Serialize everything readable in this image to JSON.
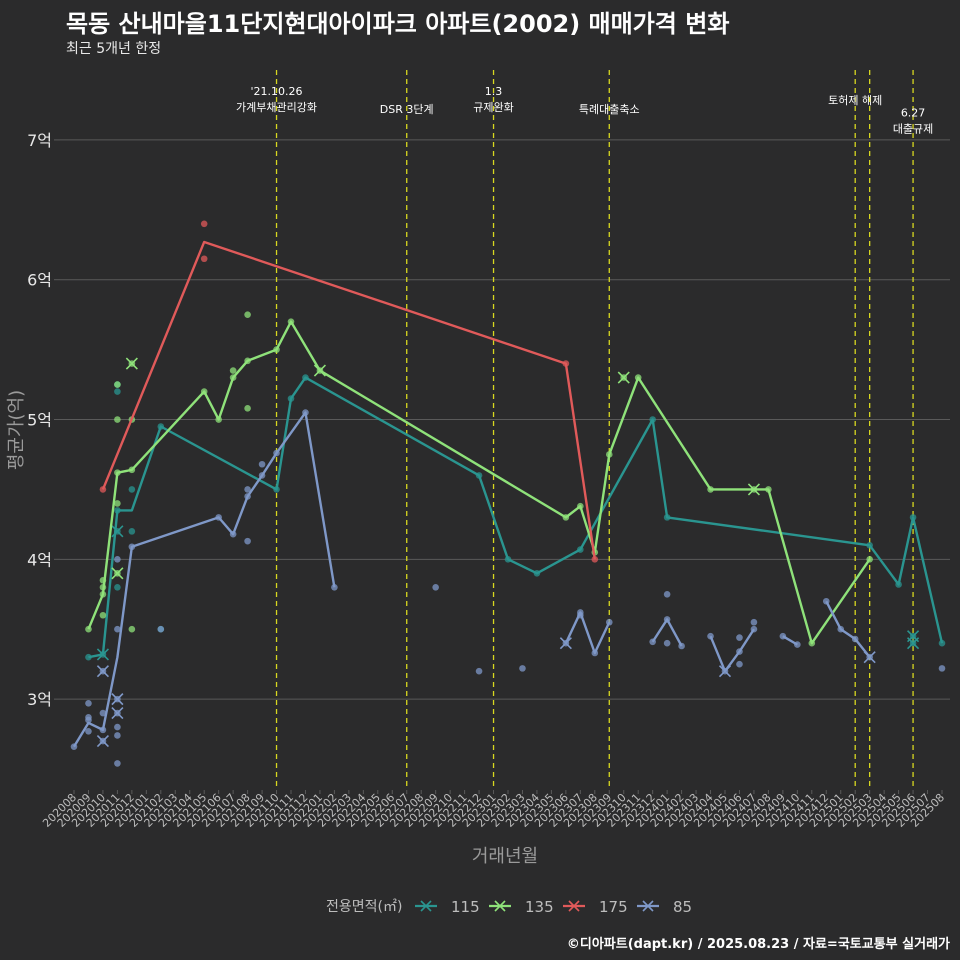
{
  "title": "목동 산내마을11단지현대아이파크 아파트(2002) 매매가격 변화",
  "subtitle": "최근 5개년 한정",
  "caption": "©디아파트(dapt.kr) / 2025.08.23 / 자료=국토교통부 실거래가",
  "colors": {
    "background": "#2b2b2c",
    "grid": "#5a5a5a",
    "event_line": "#d8d820",
    "axis_text": "#bdbdbd"
  },
  "chart_data": {
    "type": "line",
    "title": "목동 산내마을11단지현대아이파크 아파트(2002) 매매가격 변화",
    "xlabel": "거래년월",
    "ylabel": "평균가(억)",
    "ylim": [
      2.35,
      7.5
    ],
    "grid": true,
    "legend_title": "전용면적(㎡)",
    "legend_position": "bottom",
    "y_ticks": [
      {
        "v": 3,
        "label": "3억"
      },
      {
        "v": 4,
        "label": "4억"
      },
      {
        "v": 5,
        "label": "5억"
      },
      {
        "v": 6,
        "label": "6억"
      },
      {
        "v": 7,
        "label": "7억"
      }
    ],
    "categories": [
      "202008",
      "202009",
      "202010",
      "202011",
      "202012",
      "202101",
      "202102",
      "202103",
      "202104",
      "202105",
      "202106",
      "202107",
      "202108",
      "202109",
      "202110",
      "202111",
      "202112",
      "202201",
      "202202",
      "202203",
      "202204",
      "202205",
      "202206",
      "202207",
      "202208",
      "202209",
      "202210",
      "202211",
      "202212",
      "202301",
      "202302",
      "202303",
      "202304",
      "202305",
      "202306",
      "202307",
      "202308",
      "202309",
      "202310",
      "202311",
      "202312",
      "202401",
      "202402",
      "202403",
      "202404",
      "202405",
      "202406",
      "202407",
      "202408",
      "202409",
      "202410",
      "202411",
      "202412",
      "202501",
      "202502",
      "202503",
      "202504",
      "202505",
      "202506",
      "202507",
      "202508"
    ],
    "events": [
      {
        "x": 14,
        "label": "'21.10.26\n가계부채관리강화",
        "level": 0
      },
      {
        "x": 23,
        "label": "DSR 3단계",
        "level": 1
      },
      {
        "x": 29,
        "label": "1.3\n규제완화",
        "level": 0
      },
      {
        "x": 37,
        "label": "특례대출축소",
        "level": 1
      },
      {
        "x": 54,
        "label": "토허제 해제",
        "level": 0.5
      },
      {
        "x": 55,
        "label": "",
        "level": 0
      },
      {
        "x": 58,
        "label": "6.27\n대출규제",
        "level": 1.2
      }
    ],
    "series": [
      {
        "name": "115",
        "color": "#2a9590",
        "line": [
          [
            1,
            3.3
          ],
          [
            2,
            3.32
          ],
          [
            3,
            4.35
          ],
          [
            4,
            4.35
          ],
          [
            6,
            4.95
          ],
          [
            14,
            4.5
          ],
          [
            15,
            5.15
          ],
          [
            16,
            5.3
          ],
          [
            28,
            4.6
          ],
          [
            30,
            4.0
          ],
          [
            32,
            3.9
          ],
          [
            35,
            4.07
          ],
          [
            40,
            5.0
          ],
          [
            41,
            4.3
          ],
          [
            55,
            4.1
          ],
          [
            57,
            3.82
          ],
          [
            58,
            4.3
          ],
          [
            60,
            3.4
          ]
        ],
        "points": [
          [
            1,
            3.3
          ],
          [
            2,
            3.32
          ],
          [
            3,
            4.2
          ],
          [
            3,
            4.35
          ],
          [
            3,
            5.2
          ],
          [
            3,
            5.25
          ],
          [
            3,
            3.8
          ],
          [
            4,
            4.5
          ],
          [
            4,
            4.2
          ],
          [
            6,
            4.95
          ],
          [
            6,
            3.5
          ],
          [
            14,
            4.5
          ],
          [
            15,
            5.15
          ],
          [
            16,
            5.3
          ],
          [
            28,
            4.6
          ],
          [
            30,
            4.0
          ],
          [
            32,
            3.9
          ],
          [
            35,
            4.07
          ],
          [
            40,
            5.0
          ],
          [
            41,
            4.3
          ],
          [
            55,
            4.1
          ],
          [
            57,
            3.82
          ],
          [
            58,
            4.3
          ],
          [
            58,
            3.45
          ],
          [
            58,
            3.4
          ],
          [
            60,
            3.4
          ]
        ],
        "crosses": [
          [
            2,
            3.32
          ],
          [
            3,
            4.2
          ],
          [
            58,
            3.45
          ],
          [
            58,
            3.4
          ]
        ]
      },
      {
        "name": "135",
        "color": "#8fe27a",
        "line": [
          [
            1,
            3.5
          ],
          [
            2,
            3.75
          ],
          [
            3,
            4.62
          ],
          [
            4,
            4.64
          ],
          [
            9,
            5.2
          ],
          [
            10,
            5.0
          ],
          [
            11,
            5.3
          ],
          [
            12,
            5.42
          ],
          [
            14,
            5.5
          ],
          [
            15,
            5.7
          ],
          [
            17,
            5.35
          ],
          [
            34,
            4.3
          ],
          [
            35,
            4.38
          ],
          [
            36,
            4.05
          ],
          [
            37,
            4.75
          ],
          [
            39,
            5.3
          ],
          [
            44,
            4.5
          ],
          [
            47,
            4.5
          ],
          [
            48,
            4.5
          ],
          [
            51,
            3.4
          ],
          [
            55,
            4.0
          ]
        ],
        "points": [
          [
            1,
            3.5
          ],
          [
            2,
            3.75
          ],
          [
            2,
            3.8
          ],
          [
            2,
            3.85
          ],
          [
            2,
            3.6
          ],
          [
            3,
            4.62
          ],
          [
            3,
            4.4
          ],
          [
            3,
            5.0
          ],
          [
            3,
            5.25
          ],
          [
            3,
            3.9
          ],
          [
            4,
            4.64
          ],
          [
            4,
            5.0
          ],
          [
            4,
            3.5
          ],
          [
            4,
            5.4
          ],
          [
            9,
            5.2
          ],
          [
            10,
            5.0
          ],
          [
            11,
            5.3
          ],
          [
            11,
            5.35
          ],
          [
            12,
            5.42
          ],
          [
            12,
            5.75
          ],
          [
            12,
            5.08
          ],
          [
            14,
            5.5
          ],
          [
            15,
            5.7
          ],
          [
            17,
            5.35
          ],
          [
            34,
            4.3
          ],
          [
            35,
            4.38
          ],
          [
            36,
            4.05
          ],
          [
            37,
            4.75
          ],
          [
            38,
            5.3
          ],
          [
            39,
            5.3
          ],
          [
            44,
            4.5
          ],
          [
            47,
            4.5
          ],
          [
            48,
            4.5
          ],
          [
            51,
            3.4
          ],
          [
            55,
            4.0
          ]
        ],
        "crosses": [
          [
            4,
            5.4
          ],
          [
            3,
            3.9
          ],
          [
            17,
            5.35
          ],
          [
            38,
            5.3
          ],
          [
            47,
            4.5
          ]
        ]
      },
      {
        "name": "175",
        "color": "#e05a5a",
        "line": [
          [
            2,
            4.5
          ],
          [
            9,
            6.27
          ],
          [
            34,
            5.4
          ],
          [
            36,
            4.0
          ]
        ],
        "points": [
          [
            2,
            4.5
          ],
          [
            9,
            6.4
          ],
          [
            9,
            6.15
          ],
          [
            34,
            5.4
          ],
          [
            36,
            4.0
          ]
        ],
        "crosses": []
      },
      {
        "name": "85",
        "color": "#7f98c8",
        "line": [
          [
            0,
            2.66
          ],
          [
            1,
            2.83
          ],
          [
            2,
            2.78
          ],
          [
            3,
            3.3
          ],
          [
            4,
            4.09
          ],
          [
            10,
            4.3
          ],
          [
            11,
            4.18
          ],
          [
            12,
            4.45
          ],
          [
            13,
            4.6
          ],
          [
            14,
            4.76
          ],
          [
            16,
            5.05
          ],
          [
            18,
            3.8
          ]
        ],
        "line_segments": [
          [
            [
              34,
              3.4
            ],
            [
              35,
              3.62
            ],
            [
              36,
              3.33
            ],
            [
              37,
              3.55
            ]
          ],
          [
            [
              40,
              3.41
            ],
            [
              41,
              3.57
            ],
            [
              42,
              3.38
            ]
          ],
          [
            [
              44,
              3.45
            ],
            [
              45,
              3.2
            ],
            [
              46,
              3.34
            ],
            [
              47,
              3.5
            ]
          ],
          [
            [
              49,
              3.45
            ],
            [
              50,
              3.39
            ]
          ],
          [
            [
              52,
              3.7
            ],
            [
              53,
              3.5
            ],
            [
              54,
              3.43
            ],
            [
              55,
              3.3
            ]
          ]
        ],
        "points": [
          [
            0,
            2.66
          ],
          [
            1,
            2.77
          ],
          [
            1,
            2.85
          ],
          [
            1,
            2.97
          ],
          [
            1,
            2.87
          ],
          [
            2,
            2.78
          ],
          [
            2,
            2.7
          ],
          [
            2,
            2.9
          ],
          [
            2,
            3.2
          ],
          [
            3,
            3.0
          ],
          [
            3,
            2.9
          ],
          [
            3,
            2.8
          ],
          [
            3,
            2.74
          ],
          [
            3,
            2.54
          ],
          [
            3,
            3.5
          ],
          [
            3,
            4.0
          ],
          [
            4,
            4.09
          ],
          [
            6,
            3.5
          ],
          [
            10,
            4.3
          ],
          [
            11,
            4.18
          ],
          [
            12,
            4.45
          ],
          [
            12,
            4.5
          ],
          [
            12,
            4.13
          ],
          [
            13,
            4.6
          ],
          [
            13,
            4.68
          ],
          [
            14,
            4.76
          ],
          [
            16,
            5.05
          ],
          [
            18,
            3.8
          ],
          [
            25,
            3.8
          ],
          [
            28,
            3.2
          ],
          [
            31,
            3.22
          ],
          [
            34,
            3.4
          ],
          [
            35,
            3.62
          ],
          [
            35,
            3.6
          ],
          [
            36,
            3.33
          ],
          [
            37,
            3.55
          ],
          [
            40,
            3.41
          ],
          [
            41,
            3.57
          ],
          [
            41,
            3.75
          ],
          [
            41,
            3.4
          ],
          [
            42,
            3.38
          ],
          [
            44,
            3.45
          ],
          [
            45,
            3.2
          ],
          [
            46,
            3.34
          ],
          [
            46,
            3.25
          ],
          [
            46,
            3.44
          ],
          [
            47,
            3.5
          ],
          [
            47,
            3.55
          ],
          [
            49,
            3.45
          ],
          [
            50,
            3.39
          ],
          [
            52,
            3.7
          ],
          [
            53,
            3.5
          ],
          [
            54,
            3.43
          ],
          [
            55,
            3.3
          ],
          [
            60,
            3.22
          ]
        ],
        "crosses": [
          [
            2,
            3.2
          ],
          [
            2,
            2.7
          ],
          [
            3,
            3.0
          ],
          [
            3,
            2.9
          ],
          [
            34,
            3.4
          ],
          [
            45,
            3.2
          ],
          [
            55,
            3.3
          ]
        ]
      }
    ]
  }
}
